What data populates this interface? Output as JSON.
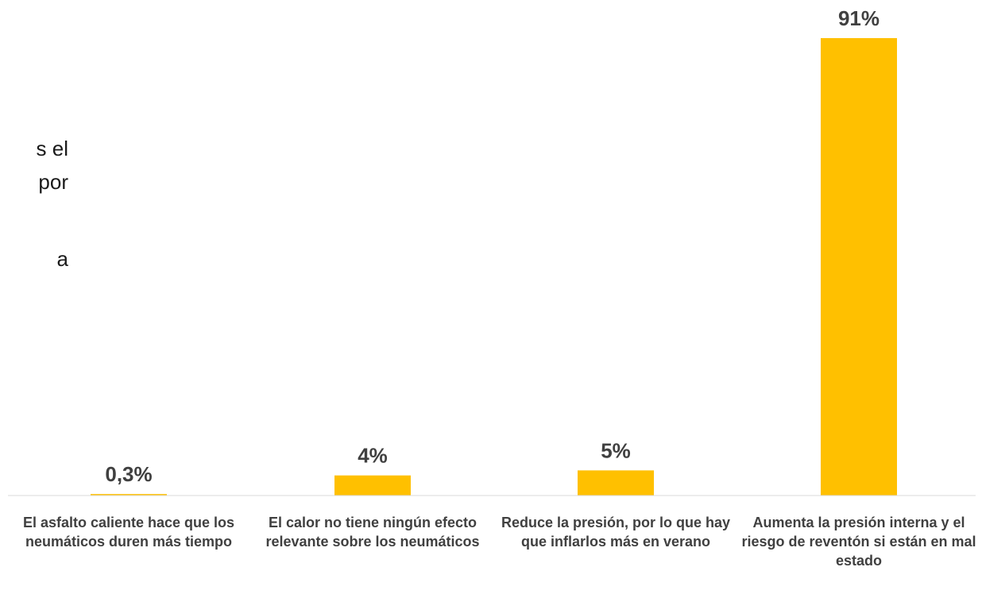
{
  "side_text": {
    "lines": [
      "s el",
      "por",
      "",
      "a"
    ]
  },
  "chart_data": {
    "type": "bar",
    "title": "",
    "xlabel": "",
    "ylabel": "",
    "categories": [
      "El asfalto caliente hace que los neumáticos duren más tiempo",
      "El calor no tiene ningún efecto relevante sobre los neumáticos",
      "Reduce la presión, por lo que hay que inflarlos más en verano",
      "Aumenta la presión interna y el riesgo de reventón si están en mal estado"
    ],
    "values": [
      0.3,
      4,
      5,
      91
    ],
    "data_labels": [
      "0,3%",
      "4%",
      "5%",
      "91%"
    ],
    "ylim": [
      0,
      91
    ],
    "grid": false,
    "legend": "none",
    "colors": {
      "bar": "#FFC000",
      "axis": "#D9D9D9",
      "value_label": "#404040",
      "category_label": "#404040"
    }
  }
}
